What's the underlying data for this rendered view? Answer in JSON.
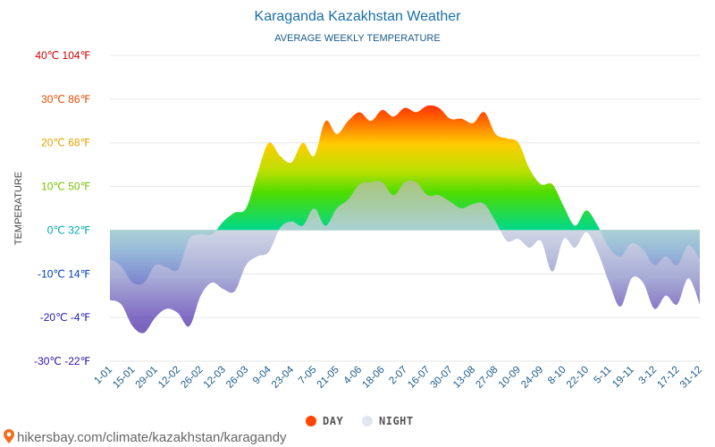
{
  "chart_data": {
    "type": "area",
    "title": "Karaganda Kazakhstan Weather",
    "subtitle": "AVERAGE WEEKLY TEMPERATURE",
    "ylabel": "TEMPERATURE",
    "ylim": [
      -30,
      40
    ],
    "y_ticks": [
      {
        "value": 40,
        "label": "40℃ 104℉",
        "color": "#cc0000"
      },
      {
        "value": 30,
        "label": "30℃ 86℉",
        "color": "#e64a00"
      },
      {
        "value": 20,
        "label": "20℃ 68℉",
        "color": "#e6a000"
      },
      {
        "value": 10,
        "label": "10℃ 50℉",
        "color": "#7ac000"
      },
      {
        "value": 0,
        "label": "0℃ 32℉",
        "color": "#00a8a8"
      },
      {
        "value": -10,
        "label": "-10℃ 14℉",
        "color": "#0040c0"
      },
      {
        "value": -20,
        "label": "-20℃ -4℉",
        "color": "#2020b0"
      },
      {
        "value": -30,
        "label": "-30℃ -22℉",
        "color": "#3010a0"
      }
    ],
    "x_tick_labels": [
      "1-01",
      "15-01",
      "29-01",
      "12-02",
      "26-02",
      "12-03",
      "26-03",
      "9-04",
      "23-04",
      "7-05",
      "21-05",
      "4-06",
      "18-06",
      "2-07",
      "16-07",
      "30-07",
      "13-08",
      "27-08",
      "10-09",
      "24-09",
      "8-10",
      "22-10",
      "5-11",
      "19-11",
      "3-12",
      "17-12",
      "31-12"
    ],
    "series": [
      {
        "name": "DAY",
        "values": [
          -6.6,
          -8.3,
          -12.0,
          -12.0,
          -8.0,
          -8.5,
          -9.0,
          -2.0,
          -1.0,
          -1.0,
          2.0,
          4.0,
          5.0,
          13.0,
          20.0,
          17.0,
          15.5,
          20.0,
          17.0,
          25.0,
          22.0,
          25.0,
          27.0,
          25.0,
          27.5,
          26.0,
          28.0,
          27.0,
          28.5,
          28.0,
          25.5,
          25.5,
          24.5,
          27.0,
          22.0,
          21.0,
          20.0,
          14.0,
          10.5,
          10.5,
          5.5,
          1.0,
          4.5,
          1.0,
          -4.0,
          -6.0,
          -3.0,
          -4.5,
          -8.0,
          -6.0,
          -8.0,
          -3.5,
          -6.6
        ]
      },
      {
        "name": "NIGHT",
        "values": [
          -16.0,
          -17.0,
          -22.0,
          -23.5,
          -20.0,
          -18.0,
          -19.0,
          -22.0,
          -15.0,
          -12.0,
          -13.5,
          -14.0,
          -8.0,
          -6.0,
          -5.0,
          0.5,
          2.0,
          1.0,
          5.0,
          1.0,
          5.0,
          7.0,
          10.5,
          11.0,
          11.0,
          8.0,
          11.0,
          11.0,
          8.0,
          8.0,
          6.5,
          5.0,
          6.0,
          6.0,
          2.0,
          -2.5,
          -2.0,
          -4.0,
          -2.5,
          -9.5,
          -2.0,
          -4.0,
          -0.5,
          -5.0,
          -12.0,
          -17.5,
          -11.0,
          -12.0,
          -18.0,
          -15.0,
          -17.0,
          -11.0,
          -17.0
        ]
      }
    ],
    "legend_position": "bottom-center",
    "grid": true
  },
  "legend": {
    "day_label": "DAY",
    "night_label": "NIGHT",
    "day_color": "#ff4500",
    "night_color": "#e0e6f0"
  },
  "source": {
    "icon": "location-pin-icon",
    "text": "hikersbay.com/climate/kazakhstan/karagandy"
  }
}
